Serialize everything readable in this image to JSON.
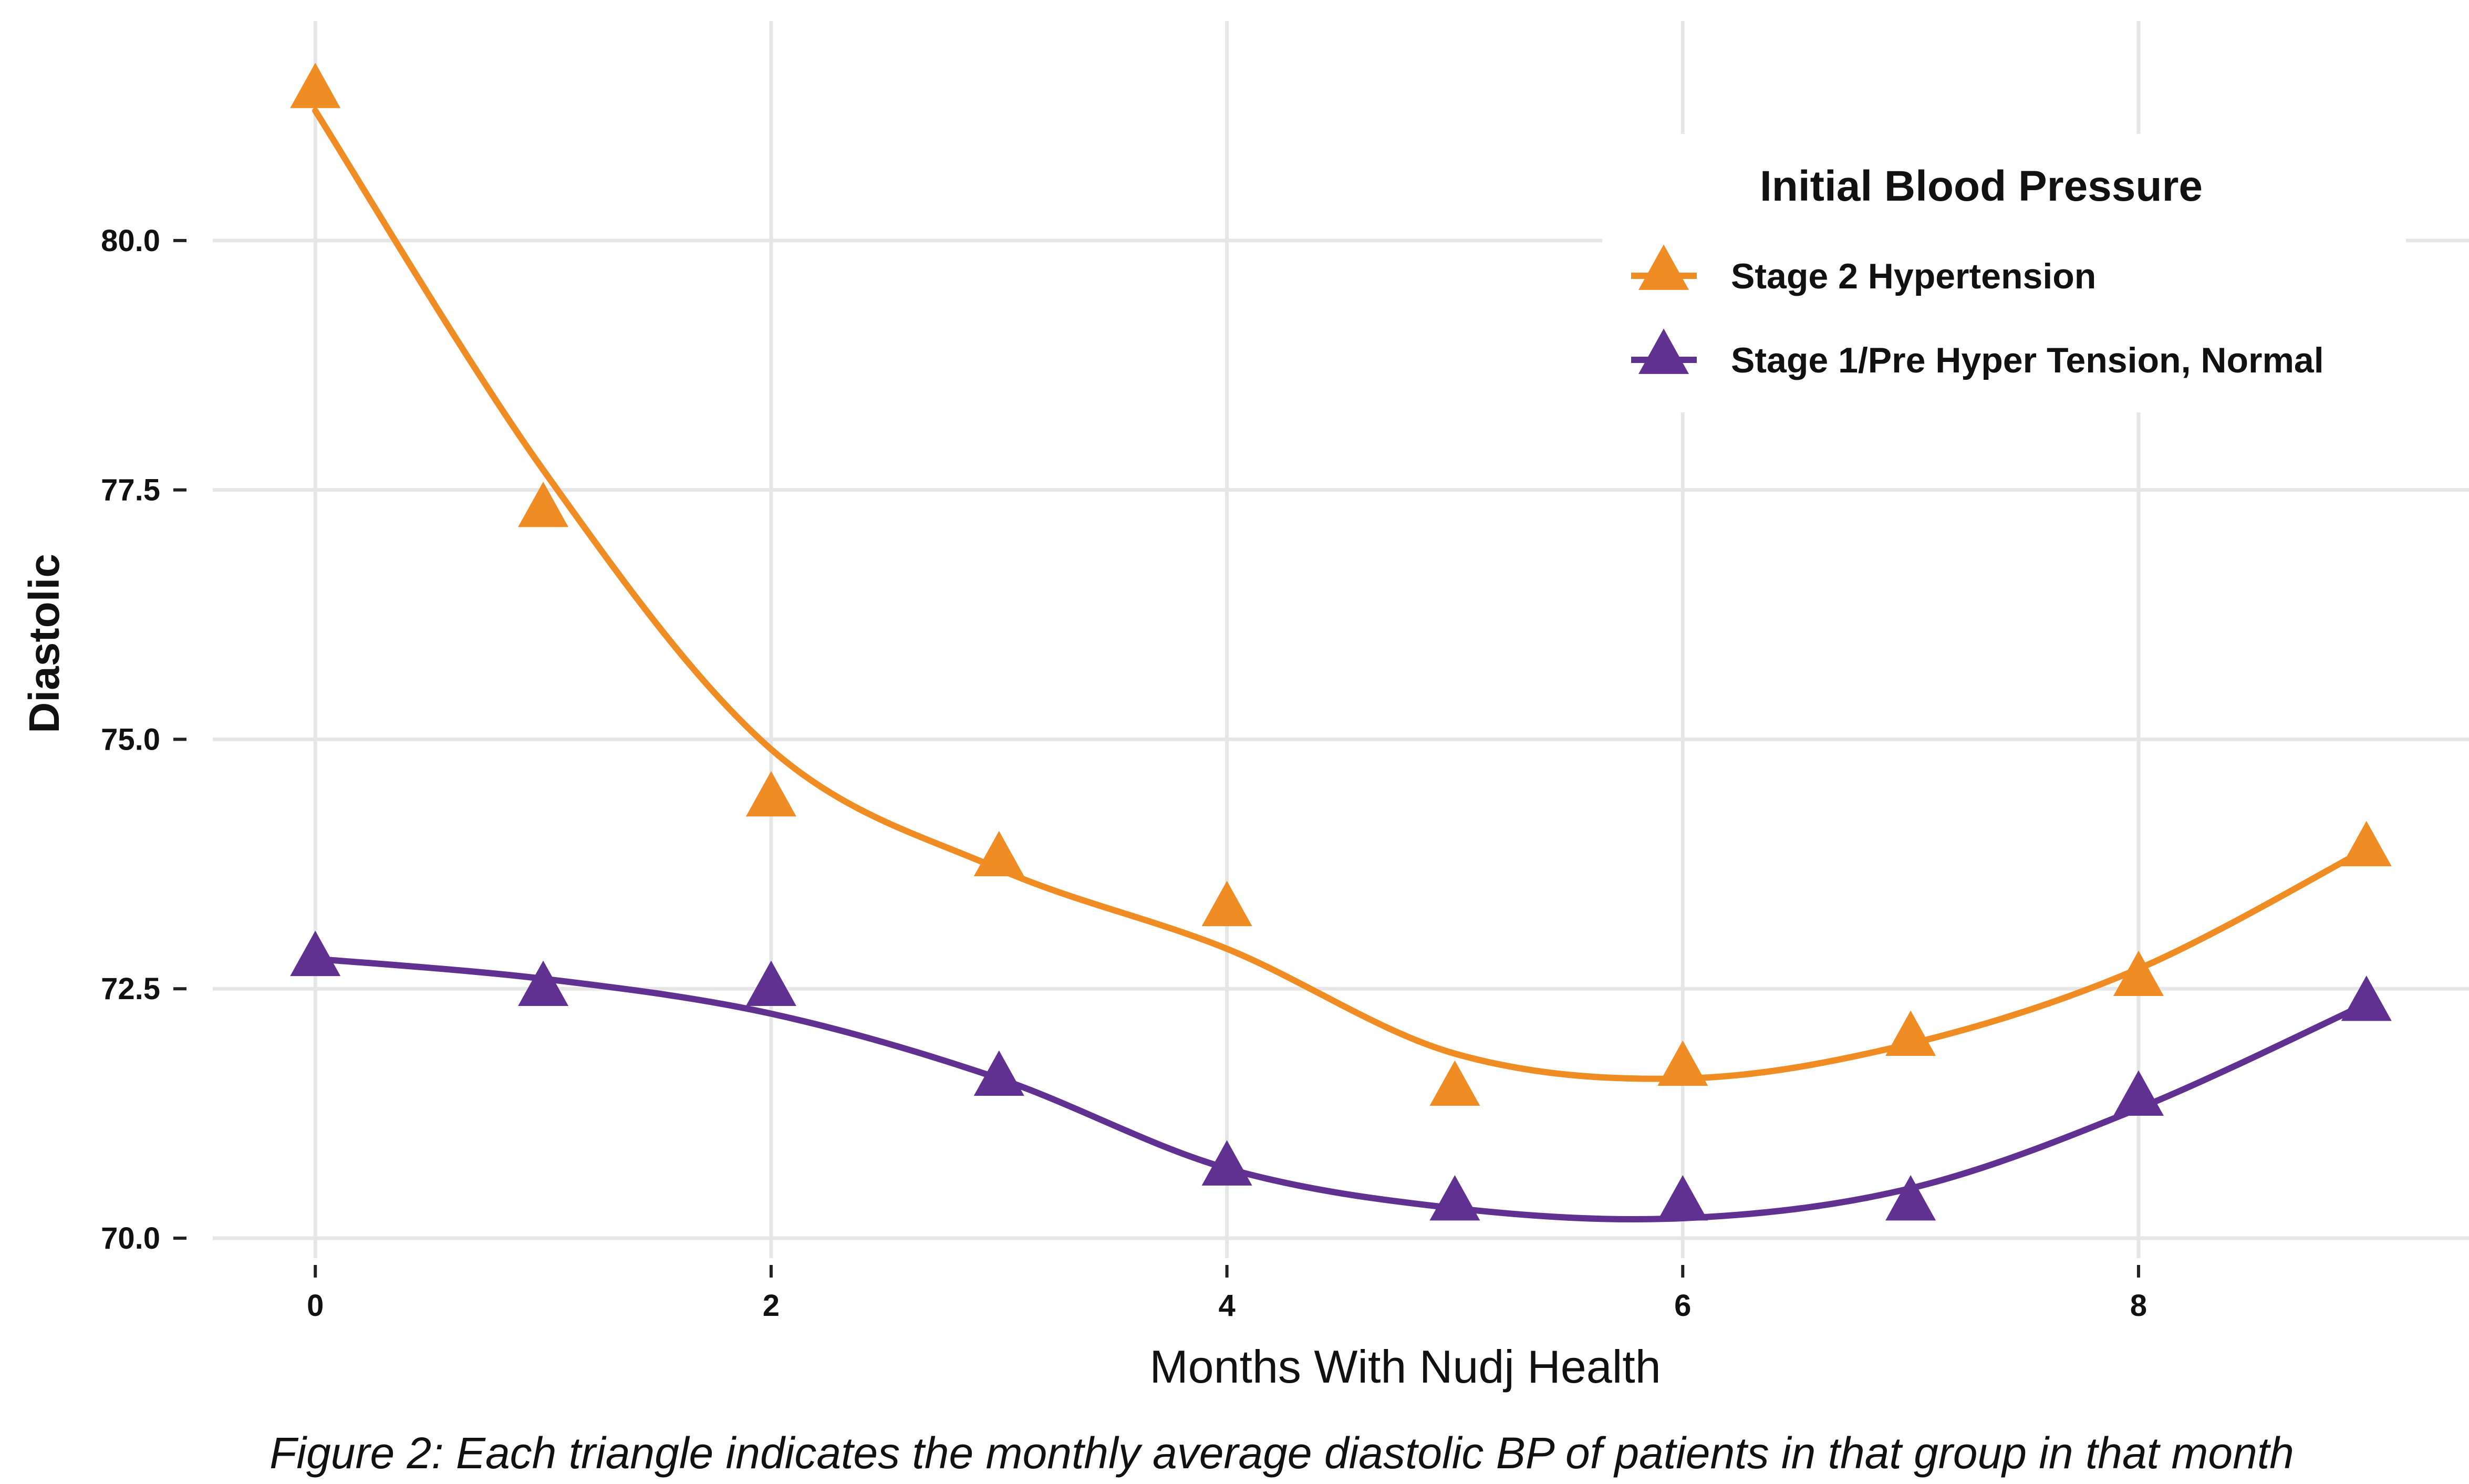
{
  "chart_data": {
    "type": "scatter",
    "xlabel": "Months With Nudj Health",
    "ylabel": "Diastolic",
    "xlim": [
      -0.45,
      9.45
    ],
    "ylim": [
      69.8,
      82.2
    ],
    "x_ticks": [
      0,
      2,
      4,
      6,
      8
    ],
    "y_ticks": [
      70.0,
      72.5,
      75.0,
      77.5,
      80.0
    ],
    "grid": true,
    "legend": {
      "title": "Initial Blood Pressure",
      "placement": "top-right"
    },
    "series": [
      {
        "name": "Stage 2 Hypertension",
        "color": "#F08C24",
        "marker": "triangle",
        "x": [
          0,
          1,
          2,
          3,
          4,
          5,
          6,
          7,
          8,
          9
        ],
        "y": [
          81.5,
          77.3,
          74.4,
          73.8,
          73.3,
          71.5,
          71.7,
          72.0,
          72.6,
          73.9
        ],
        "trend": [
          81.3,
          77.7,
          74.9,
          73.7,
          72.9,
          71.85,
          71.6,
          71.95,
          72.7,
          73.9
        ]
      },
      {
        "name": "Stage 1/Pre Hyper Tension, Normal",
        "color": "#613192",
        "marker": "triangle",
        "x": [
          0,
          1,
          2,
          3,
          4,
          5,
          6,
          7,
          8,
          9
        ],
        "y": [
          72.8,
          72.5,
          72.5,
          71.6,
          70.7,
          70.35,
          70.35,
          70.35,
          71.4,
          72.35
        ],
        "trend": [
          72.8,
          72.6,
          72.25,
          71.6,
          70.7,
          70.3,
          70.2,
          70.5,
          71.3,
          72.35
        ]
      }
    ]
  },
  "caption": "Figure 2: Each triangle indicates the monthly average diastolic BP of patients in that group in that month"
}
